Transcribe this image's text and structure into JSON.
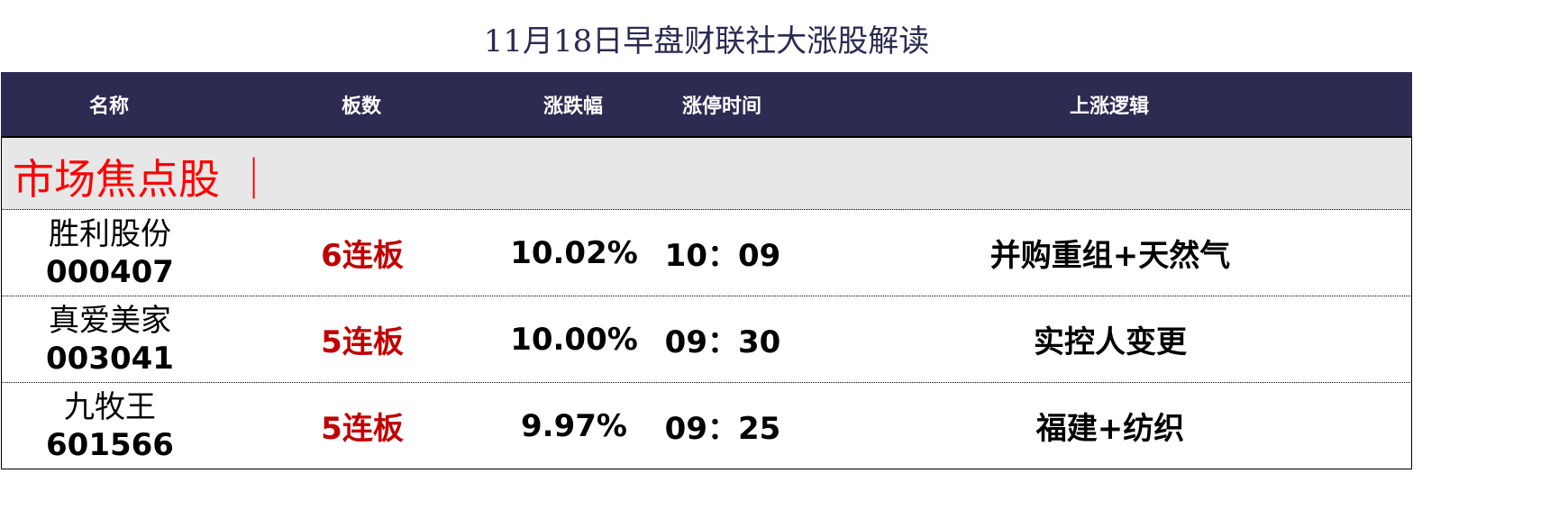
{
  "title": "11月18日早盘财联社大涨股解读",
  "headers": [
    "名称",
    "板数",
    "涨跌幅",
    "涨停时间",
    "上涨逻辑"
  ],
  "section": "市场焦点股 ｜",
  "rows": [
    {
      "name": "胜利股份",
      "code": "000407",
      "boards": "6连板",
      "change": "10.02%",
      "time": "10：09",
      "logic": "并购重组+天然气"
    },
    {
      "name": "真爱美家",
      "code": "003041",
      "boards": "5连板",
      "change": "10.00%",
      "time": "09：30",
      "logic": "实控人变更"
    },
    {
      "name": "九牧王",
      "code": "601566",
      "boards": "5连板",
      "change": "9.97%",
      "time": "09：25",
      "logic": "福建+纺织"
    }
  ],
  "colors": {
    "header_bg": "#2d2b52",
    "section_bg": "#e7e7e7",
    "section_text": "#ff0000",
    "boards_text": "#c00000"
  }
}
